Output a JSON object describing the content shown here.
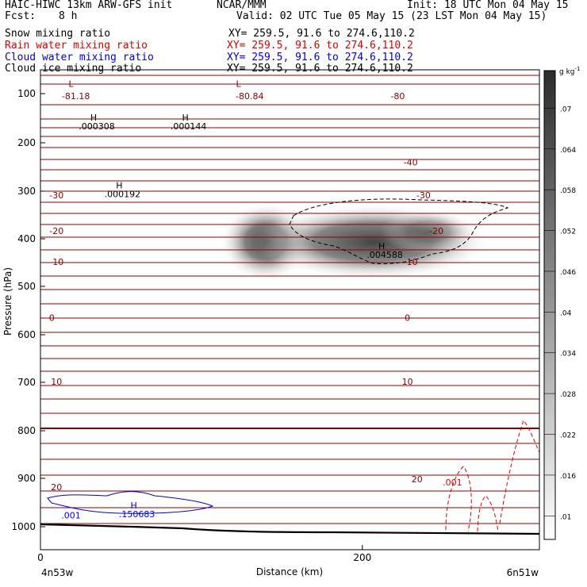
{
  "header": {
    "title_left": "HAIC-HIWC 13km ARW-GFS init",
    "title_center": "NCAR/MMM",
    "init": "Init: 18 UTC Mon 04 May 15",
    "fcst_label": "Fcst:",
    "fcst_value": "8 h",
    "valid": "Valid: 02 UTC Tue 05 May 15 (23 LST Mon 04 May 15)",
    "fields": [
      {
        "name": "Snow mixing ratio",
        "xy": "XY= 259.5, 91.6 to 274.6,110.2",
        "color": "#000000"
      },
      {
        "name": "Rain water mixing ratio",
        "xy": "XY= 259.5, 91.6 to 274.6,110.2",
        "color": "#e00000"
      },
      {
        "name": "Cloud water mixing ratio",
        "xy": "XY= 259.5, 91.6 to 274.6,110.2",
        "color": "#0000dd"
      },
      {
        "name": "Cloud ice mixing ratio",
        "xy": "XY= 259.5, 91.6 to 274.6,110.2",
        "color": "#000000"
      }
    ]
  },
  "chart_data": {
    "type": "cross-section",
    "xlabel": "Distance (km)",
    "ylabel": "Pressure (hPa)",
    "x_ticks": [
      0,
      200
    ],
    "y_ticks": [
      100,
      200,
      300,
      400,
      500,
      600,
      700,
      800,
      900,
      1000
    ],
    "xlim": [
      0,
      310
    ],
    "ylim": [
      1050,
      45
    ],
    "left_endpoint": "4n53w",
    "right_endpoint": "6n51w",
    "temperature_labels": [
      {
        "text": "-81.18",
        "x": 22,
        "p": 105
      },
      {
        "text": "-80.84",
        "x": 130,
        "p": 105
      },
      {
        "text": "-80",
        "x": 222,
        "p": 105
      },
      {
        "text": "-40",
        "x": 230,
        "p": 240
      },
      {
        "text": "-30",
        "x": 10,
        "p": 308
      },
      {
        "text": "-30",
        "x": 238,
        "p": 308
      },
      {
        "text": "-20",
        "x": 10,
        "p": 383
      },
      {
        "text": "-20",
        "x": 246,
        "p": 383
      },
      {
        "text": "-10",
        "x": 10,
        "p": 448
      },
      {
        "text": "-10",
        "x": 230,
        "p": 448
      },
      {
        "text": "0",
        "x": 7,
        "p": 565
      },
      {
        "text": "0",
        "x": 228,
        "p": 565
      },
      {
        "text": "10",
        "x": 10,
        "p": 698
      },
      {
        "text": "10",
        "x": 228,
        "p": 698
      },
      {
        "text": "20",
        "x": 10,
        "p": 918
      },
      {
        "text": "20",
        "x": 234,
        "p": 902
      }
    ],
    "extrema_labels": [
      {
        "mark": "L",
        "value": "",
        "x": 19,
        "p": 84,
        "color": "#8b0000"
      },
      {
        "mark": "L",
        "value": "",
        "x": 123,
        "p": 84,
        "color": "#8b0000"
      },
      {
        "mark": "H",
        "value": ".000308",
        "x": 33,
        "p": 155,
        "color": "#000000"
      },
      {
        "mark": "H",
        "value": ".000144",
        "x": 90,
        "p": 155,
        "color": "#000000"
      },
      {
        "mark": "H",
        "value": ".000192",
        "x": 49,
        "p": 294,
        "color": "#000000"
      },
      {
        "mark": "H",
        "value": ".004588",
        "x": 212,
        "p": 422,
        "color": "#000000"
      },
      {
        "mark": "H",
        "value": ".150683",
        "x": 58,
        "p": 962,
        "color": "#0000dd"
      }
    ],
    "contour_value_labels": [
      {
        "text": ".001",
        "x": 19,
        "p": 976,
        "color": "#0000dd"
      },
      {
        "text": ".001",
        "x": 256,
        "p": 908,
        "color": "#e00000"
      }
    ],
    "shading_colorbar": {
      "units": "g kg",
      "units_exponent": "-1",
      "levels": [
        ".01",
        ".016",
        ".022",
        ".028",
        ".034",
        ".04",
        ".046",
        ".052",
        ".058",
        ".064",
        ".07"
      ]
    }
  }
}
